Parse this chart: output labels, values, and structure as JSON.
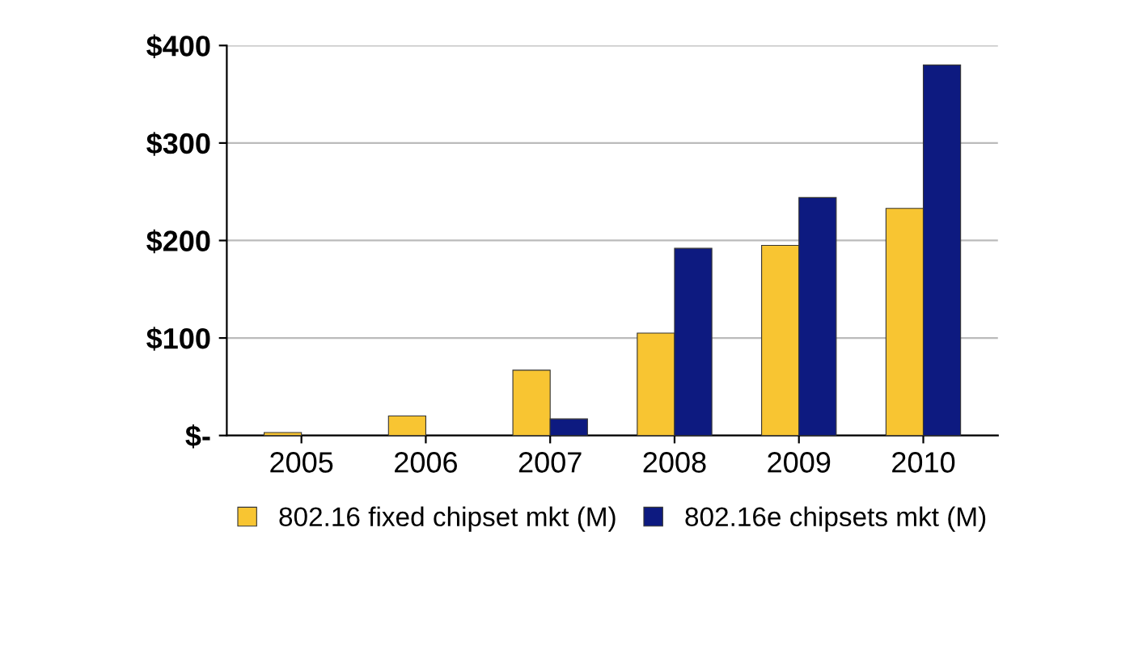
{
  "chart_data": {
    "type": "bar",
    "categories": [
      "2005",
      "2006",
      "2007",
      "2008",
      "2009",
      "2010"
    ],
    "series": [
      {
        "name": "802.16 fixed chipset mkt (M)",
        "color": "#f8c532",
        "values": [
          3,
          20,
          67,
          105,
          195,
          233
        ]
      },
      {
        "name": "802.16e chipsets mkt (M)",
        "color": "#0d1a80",
        "values": [
          null,
          null,
          17,
          192,
          244,
          380
        ]
      }
    ],
    "ylim": [
      0,
      400
    ],
    "yticks": [
      {
        "value": 0,
        "label": "$-"
      },
      {
        "value": 100,
        "label": "$100"
      },
      {
        "value": 200,
        "label": "$200"
      },
      {
        "value": 300,
        "label": "$300"
      },
      {
        "value": 400,
        "label": "$400"
      }
    ],
    "grid": "y",
    "legend": "bottom"
  }
}
